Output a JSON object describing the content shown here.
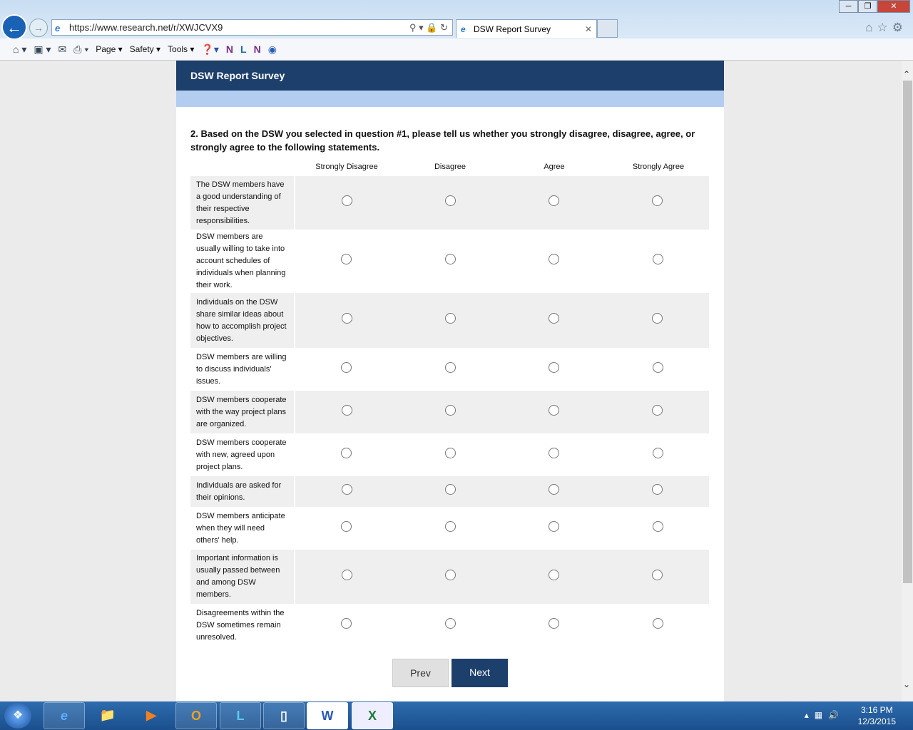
{
  "browser": {
    "url": "https://www.research.net/r/XWJCVX9",
    "tab_title": "DSW Report Survey",
    "menu": [
      "Page",
      "Safety",
      "Tools"
    ]
  },
  "survey": {
    "title": "DSW Report Survey",
    "question": "2. Based on the DSW you selected in question #1, please tell us whether you strongly disagree, disagree, agree, or strongly agree to the following statements.",
    "columns": [
      "Strongly Disagree",
      "Disagree",
      "Agree",
      "Strongly Agree"
    ],
    "rows": [
      "The DSW members have a good understanding of their respective responsibilities.",
      "DSW members are usually willing to take into account schedules of individuals when planning their work.",
      "Individuals on the DSW share similar ideas about how to accomplish project objectives.",
      "DSW members are willing to discuss individuals' issues.",
      "DSW members cooperate with the way project plans are organized.",
      "DSW members cooperate with new, agreed upon project plans.",
      "Individuals are asked for their opinions.",
      "DSW members anticipate when they will need others' help.",
      "Important information is usually passed between and among DSW members.",
      "Disagreements within the DSW sometimes remain unresolved."
    ],
    "prev_label": "Prev",
    "next_label": "Next",
    "header_color": "#1d3f6c"
  },
  "taskbar": {
    "time": "3:16 PM",
    "date": "12/3/2015"
  }
}
